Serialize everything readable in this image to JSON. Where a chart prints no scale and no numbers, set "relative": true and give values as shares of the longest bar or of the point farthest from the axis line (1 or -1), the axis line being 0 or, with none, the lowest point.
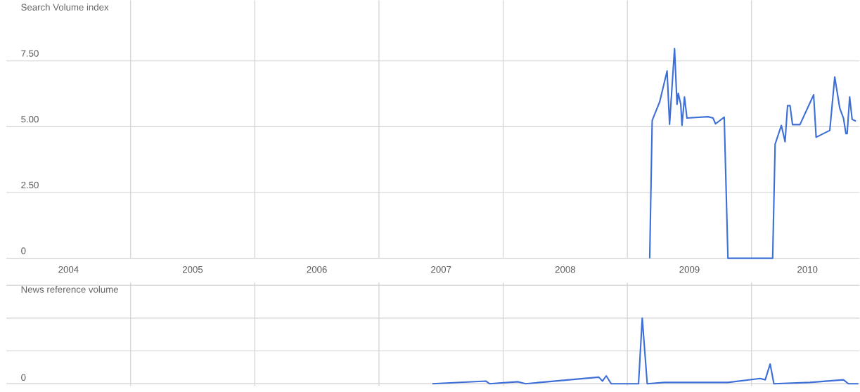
{
  "chart_data": [
    {
      "type": "line",
      "title": "Search Volume index",
      "x": [
        2009.18,
        2009.2,
        2009.26,
        2009.32,
        2009.34,
        2009.38,
        2009.4,
        2009.41,
        2009.43,
        2009.44,
        2009.46,
        2009.48,
        2009.65,
        2009.69,
        2009.71,
        2009.78,
        2009.81,
        2010.17,
        2010.19,
        2010.24,
        2010.27,
        2010.29,
        2010.31,
        2010.33,
        2010.39,
        2010.5,
        2010.52,
        2010.63,
        2010.67,
        2010.71,
        2010.74,
        2010.76,
        2010.77,
        2010.79,
        2010.81,
        2010.84
      ],
      "series": [
        {
          "color": "#3d6fd6",
          "values": [
            0,
            5.24,
            5.94,
            7.12,
            5.09,
            7.97,
            5.85,
            6.27,
            5.85,
            5.05,
            6.13,
            5.33,
            5.38,
            5.33,
            5.11,
            5.36,
            0,
            0,
            4.34,
            5.05,
            4.43,
            5.8,
            5.8,
            5.08,
            5.08,
            6.21,
            4.6,
            4.86,
            6.89,
            5.71,
            5.33,
            4.74,
            4.74,
            6.13,
            5.28,
            5.21
          ]
        }
      ],
      "xlim": [
        2004,
        2010.87
      ],
      "ylim": [
        0,
        9.8
      ],
      "xticks": [
        {
          "value": 2004.5,
          "label": "2004"
        },
        {
          "value": 2005,
          "label": null
        },
        {
          "value": 2005.5,
          "label": "2005"
        },
        {
          "value": 2006,
          "label": null
        },
        {
          "value": 2006.5,
          "label": "2006"
        },
        {
          "value": 2007,
          "label": null
        },
        {
          "value": 2007.5,
          "label": "2007"
        },
        {
          "value": 2008,
          "label": null
        },
        {
          "value": 2008.5,
          "label": "2008"
        },
        {
          "value": 2009,
          "label": null
        },
        {
          "value": 2009.5,
          "label": "2009"
        },
        {
          "value": 2010,
          "label": null
        },
        {
          "value": 2010.45,
          "label": "2010"
        }
      ],
      "yticks": [
        0,
        {
          "value": 2.5,
          "label": "2.50"
        },
        {
          "value": 5,
          "label": "5.00"
        },
        {
          "value": 7.5,
          "label": "7.50"
        }
      ],
      "grid": true
    },
    {
      "type": "line",
      "title": "News reference volume",
      "relative": true,
      "x": [
        2007.43,
        2007.86,
        2007.89,
        2008.12,
        2008.18,
        2008.77,
        2008.8,
        2008.83,
        2008.87,
        2009.09,
        2009.12,
        2009.16,
        2009.3,
        2009.81,
        2010.07,
        2010.11,
        2010.15,
        2010.18,
        2010.47,
        2010.74,
        2010.78,
        2010.86
      ],
      "series": [
        {
          "color": "#3d6fd6",
          "values": [
            0,
            0.04,
            0,
            0.03,
            0,
            0.1,
            0.04,
            0.12,
            0,
            0,
            1.0,
            0,
            0.02,
            0.02,
            0.08,
            0.06,
            0.3,
            0,
            0.02,
            0.06,
            0,
            0
          ]
        }
      ],
      "xlim": [
        2004,
        2010.87
      ],
      "xticks": [
        {
          "value": 2005,
          "label": null
        },
        {
          "value": 2006,
          "label": null
        },
        {
          "value": 2007,
          "label": null
        },
        {
          "value": 2008,
          "label": null
        },
        {
          "value": 2009,
          "label": null
        },
        {
          "value": 2010,
          "label": null
        }
      ],
      "annotations": [
        "0"
      ],
      "tick_labels": false,
      "grid": true
    }
  ]
}
